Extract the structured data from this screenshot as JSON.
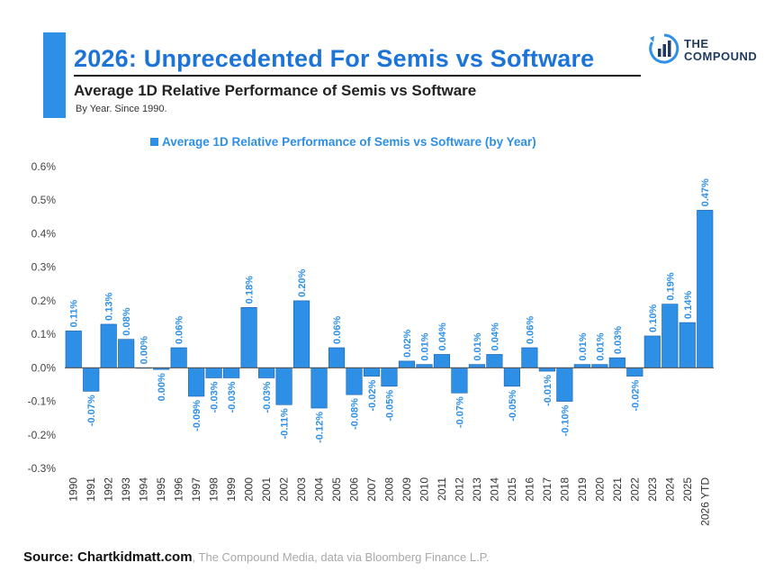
{
  "header": {
    "title": "2026: Unprecedented For Semis vs Software",
    "subtitle": "Average 1D Relative Performance of Semis vs Software",
    "note": "By Year. Since 1990."
  },
  "logo": {
    "line1": "THE",
    "line2": "COMPOUND",
    "icon": "bar-chart-circle-icon"
  },
  "legend": {
    "label": "Average 1D Relative Performance of Semis vs Software (by Year)"
  },
  "source": {
    "bold": "Source: Chartkidmatt.com",
    "rest": ", The Compound Media, data via Bloomberg Finance L.P."
  },
  "colors": {
    "bar": "#2e8fe6",
    "title": "#1c74d8",
    "accent": "#2e8fe6"
  },
  "chart_data": {
    "type": "bar",
    "categories": [
      "1990",
      "1991",
      "1992",
      "1993",
      "1994",
      "1995",
      "1996",
      "1997",
      "1998",
      "1999",
      "2000",
      "2001",
      "2002",
      "2003",
      "2004",
      "2005",
      "2006",
      "2007",
      "2008",
      "2009",
      "2010",
      "2011",
      "2012",
      "2013",
      "2014",
      "2015",
      "2016",
      "2017",
      "2018",
      "2019",
      "2020",
      "2021",
      "2022",
      "2023",
      "2024",
      "2025",
      "2026 YTD"
    ],
    "values": [
      0.11,
      -0.07,
      0.13,
      0.085,
      0.0,
      -0.005,
      0.06,
      -0.085,
      -0.03,
      -0.03,
      0.18,
      -0.03,
      -0.11,
      0.2,
      -0.12,
      0.06,
      -0.08,
      -0.025,
      -0.055,
      0.02,
      0.01,
      0.04,
      -0.075,
      0.01,
      0.04,
      -0.055,
      0.06,
      -0.01,
      -0.1,
      0.01,
      0.01,
      0.03,
      -0.025,
      0.095,
      0.19,
      0.135,
      0.47
    ],
    "labels": [
      "0.11%",
      "-0.07%",
      "0.13%",
      "0.08%",
      "0.00%",
      "0.00%",
      "0.06%",
      "-0.09%",
      "-0.03%",
      "-0.03%",
      "0.18%",
      "-0.03%",
      "-0.11%",
      "0.20%",
      "-0.12%",
      "0.06%",
      "-0.08%",
      "-0.02%",
      "-0.05%",
      "0.02%",
      "0.01%",
      "0.04%",
      "-0.07%",
      "0.01%",
      "0.04%",
      "-0.05%",
      "0.06%",
      "-0.01%",
      "-0.10%",
      "0.01%",
      "0.01%",
      "0.03%",
      "-0.02%",
      "0.10%",
      "0.19%",
      "0.14%",
      "0.47%"
    ],
    "y_ticks": [
      "0.6%",
      "0.5%",
      "0.4%",
      "0.3%",
      "0.2%",
      "0.1%",
      "0.0%",
      "-0.1%",
      "-0.2%",
      "-0.3%"
    ],
    "ylim": [
      -0.3,
      0.6
    ],
    "ylabel_unit": "%",
    "series": [
      {
        "name": "Average 1D Relative Performance of Semis vs Software (by Year)"
      }
    ],
    "legend_position": "top",
    "grid": false
  }
}
